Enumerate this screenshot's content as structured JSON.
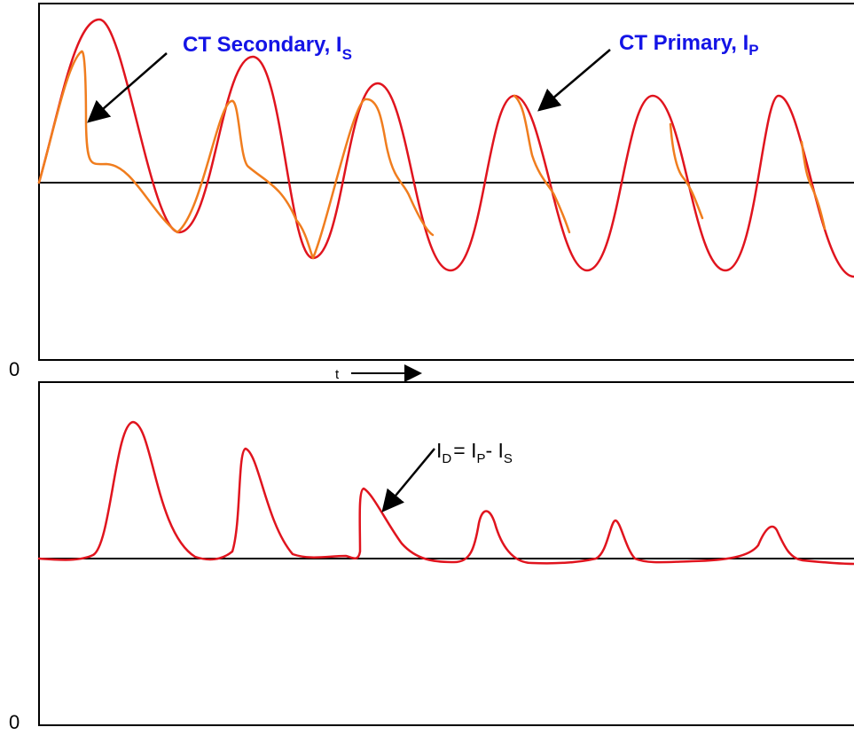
{
  "colors": {
    "primary_curve": "#e0141e",
    "secondary_curve": "#f07d1e",
    "callout_text": "#1414e6",
    "axes": "#000000",
    "background": "#ffffff"
  },
  "upper_panel": {
    "zero_label": "0",
    "time_label": "t",
    "secondary_label": {
      "main": "CT Secondary, I",
      "sub": "S"
    },
    "primary_label": {
      "main": "CT Primary, I",
      "sub": "P"
    }
  },
  "lower_panel": {
    "zero_label": "0",
    "equation": {
      "i1": "I",
      "s1": "D",
      "eq": "= ",
      "i2": "I",
      "s2": "P",
      "minus": "- ",
      "i3": "I",
      "s3": "S"
    }
  }
}
